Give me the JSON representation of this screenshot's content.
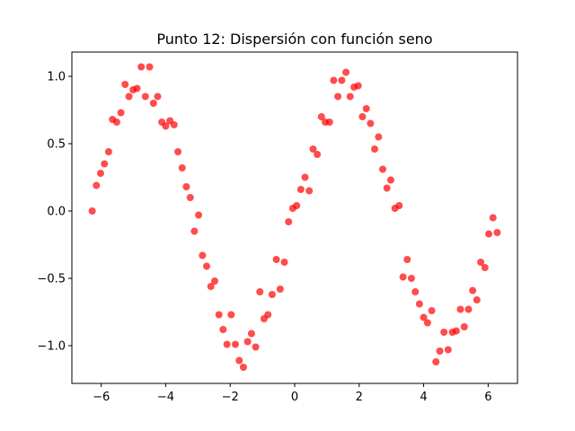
{
  "chart_data": {
    "type": "scatter",
    "title": "Punto 12: Dispersión con función seno",
    "xlabel": "",
    "ylabel": "",
    "xlim": [
      -6.91,
      6.91
    ],
    "ylim": [
      -1.28,
      1.18
    ],
    "x_ticks": [
      -6,
      -4,
      -2,
      0,
      2,
      4,
      6
    ],
    "x_tick_labels": [
      "−6",
      "−4",
      "−2",
      "0",
      "2",
      "4",
      "6"
    ],
    "y_ticks": [
      -1.0,
      -0.5,
      0.0,
      0.5,
      1.0
    ],
    "y_tick_labels": [
      "−1.0",
      "−0.5",
      "0.0",
      "0.5",
      "1.0"
    ],
    "grid": false,
    "legend": "none",
    "marker_color": "#ff0000",
    "marker_alpha": 0.7,
    "points": [
      [
        -6.28,
        0.0
      ],
      [
        -6.15,
        0.19
      ],
      [
        -6.02,
        0.28
      ],
      [
        -5.9,
        0.35
      ],
      [
        -5.77,
        0.44
      ],
      [
        -5.65,
        0.68
      ],
      [
        -5.52,
        0.66
      ],
      [
        -5.39,
        0.73
      ],
      [
        -5.26,
        0.94
      ],
      [
        -5.14,
        0.85
      ],
      [
        -5.01,
        0.9
      ],
      [
        -4.89,
        0.91
      ],
      [
        -4.76,
        1.07
      ],
      [
        -4.63,
        0.85
      ],
      [
        -4.5,
        1.07
      ],
      [
        -4.38,
        0.8
      ],
      [
        -4.25,
        0.85
      ],
      [
        -4.12,
        0.66
      ],
      [
        -4.0,
        0.63
      ],
      [
        -3.87,
        0.67
      ],
      [
        -3.74,
        0.64
      ],
      [
        -3.62,
        0.44
      ],
      [
        -3.49,
        0.32
      ],
      [
        -3.36,
        0.18
      ],
      [
        -3.24,
        0.1
      ],
      [
        -3.11,
        -0.15
      ],
      [
        -2.98,
        -0.03
      ],
      [
        -2.86,
        -0.33
      ],
      [
        -2.73,
        -0.41
      ],
      [
        -2.6,
        -0.56
      ],
      [
        -2.48,
        -0.52
      ],
      [
        -2.35,
        -0.77
      ],
      [
        -2.22,
        -0.88
      ],
      [
        -2.1,
        -0.99
      ],
      [
        -1.97,
        -0.77
      ],
      [
        -1.84,
        -0.99
      ],
      [
        -1.72,
        -1.11
      ],
      [
        -1.59,
        -1.16
      ],
      [
        -1.46,
        -0.97
      ],
      [
        -1.34,
        -0.91
      ],
      [
        -1.21,
        -1.01
      ],
      [
        -1.08,
        -0.6
      ],
      [
        -0.95,
        -0.8
      ],
      [
        -0.83,
        -0.77
      ],
      [
        -0.7,
        -0.62
      ],
      [
        -0.57,
        -0.36
      ],
      [
        -0.45,
        -0.58
      ],
      [
        -0.32,
        -0.38
      ],
      [
        -0.19,
        -0.08
      ],
      [
        -0.06,
        0.02
      ],
      [
        0.06,
        0.04
      ],
      [
        0.19,
        0.16
      ],
      [
        0.32,
        0.25
      ],
      [
        0.45,
        0.15
      ],
      [
        0.57,
        0.46
      ],
      [
        0.7,
        0.42
      ],
      [
        0.83,
        0.7
      ],
      [
        0.95,
        0.66
      ],
      [
        1.08,
        0.66
      ],
      [
        1.21,
        0.97
      ],
      [
        1.34,
        0.85
      ],
      [
        1.46,
        0.97
      ],
      [
        1.59,
        1.03
      ],
      [
        1.72,
        0.85
      ],
      [
        1.84,
        0.92
      ],
      [
        1.97,
        0.93
      ],
      [
        2.1,
        0.7
      ],
      [
        2.22,
        0.76
      ],
      [
        2.35,
        0.65
      ],
      [
        2.48,
        0.46
      ],
      [
        2.6,
        0.55
      ],
      [
        2.73,
        0.31
      ],
      [
        2.86,
        0.17
      ],
      [
        2.98,
        0.23
      ],
      [
        3.11,
        0.02
      ],
      [
        3.24,
        0.04
      ],
      [
        3.36,
        -0.49
      ],
      [
        3.49,
        -0.36
      ],
      [
        3.62,
        -0.5
      ],
      [
        3.74,
        -0.6
      ],
      [
        3.87,
        -0.69
      ],
      [
        4.0,
        -0.79
      ],
      [
        4.12,
        -0.83
      ],
      [
        4.25,
        -0.74
      ],
      [
        4.38,
        -1.12
      ],
      [
        4.5,
        -1.04
      ],
      [
        4.63,
        -0.9
      ],
      [
        4.76,
        -1.03
      ],
      [
        4.89,
        -0.9
      ],
      [
        5.01,
        -0.89
      ],
      [
        5.14,
        -0.73
      ],
      [
        5.26,
        -0.86
      ],
      [
        5.39,
        -0.73
      ],
      [
        5.52,
        -0.59
      ],
      [
        5.65,
        -0.66
      ],
      [
        5.77,
        -0.38
      ],
      [
        5.9,
        -0.42
      ],
      [
        6.02,
        -0.17
      ],
      [
        6.15,
        -0.05
      ],
      [
        6.28,
        -0.16
      ]
    ]
  }
}
